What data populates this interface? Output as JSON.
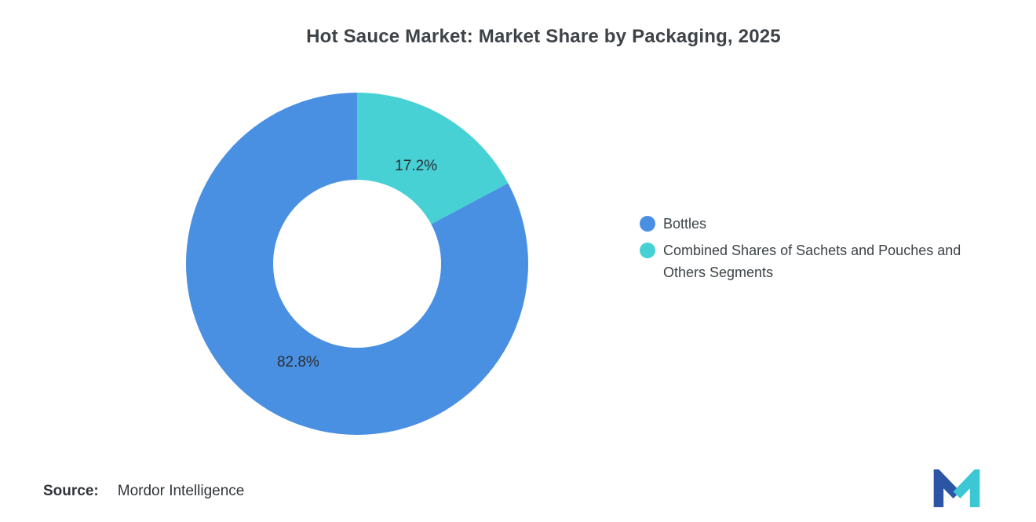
{
  "page": {
    "background": "#ffffff"
  },
  "chart_data": {
    "type": "pie",
    "subtype": "donut",
    "title": "Hot Sauce Market: Market Share by Packaging, 2025",
    "legend_position": "right",
    "start_angle": "top",
    "direction": "clockwise",
    "inner_radius_ratio": 0.49,
    "segments": [
      {
        "id": "bottles",
        "label": "Bottles",
        "value": 82.8,
        "display": "82.8%",
        "color": "#4A90E2"
      },
      {
        "id": "sachets-pouches-others",
        "label": "Combined Shares of Sachets and Pouches and Others Segments",
        "value": 17.2,
        "display": "17.2%",
        "color": "#47D1D5"
      }
    ]
  },
  "legend": {
    "items": [
      {
        "label": "Bottles",
        "color": "#4A90E2"
      },
      {
        "label": "Combined Shares of Sachets and Pouches and Others Segments",
        "color": "#47D1D5"
      }
    ]
  },
  "labels": {
    "slice_label_color": "#2b2e33",
    "slice_label_font_size": 19
  },
  "source": {
    "label": "Source:",
    "value": "Mordor Intelligence"
  },
  "logo": {
    "name": "Mordor Intelligence",
    "colors": {
      "blue": "#2D55A5",
      "teal": "#3CC7D4"
    }
  }
}
